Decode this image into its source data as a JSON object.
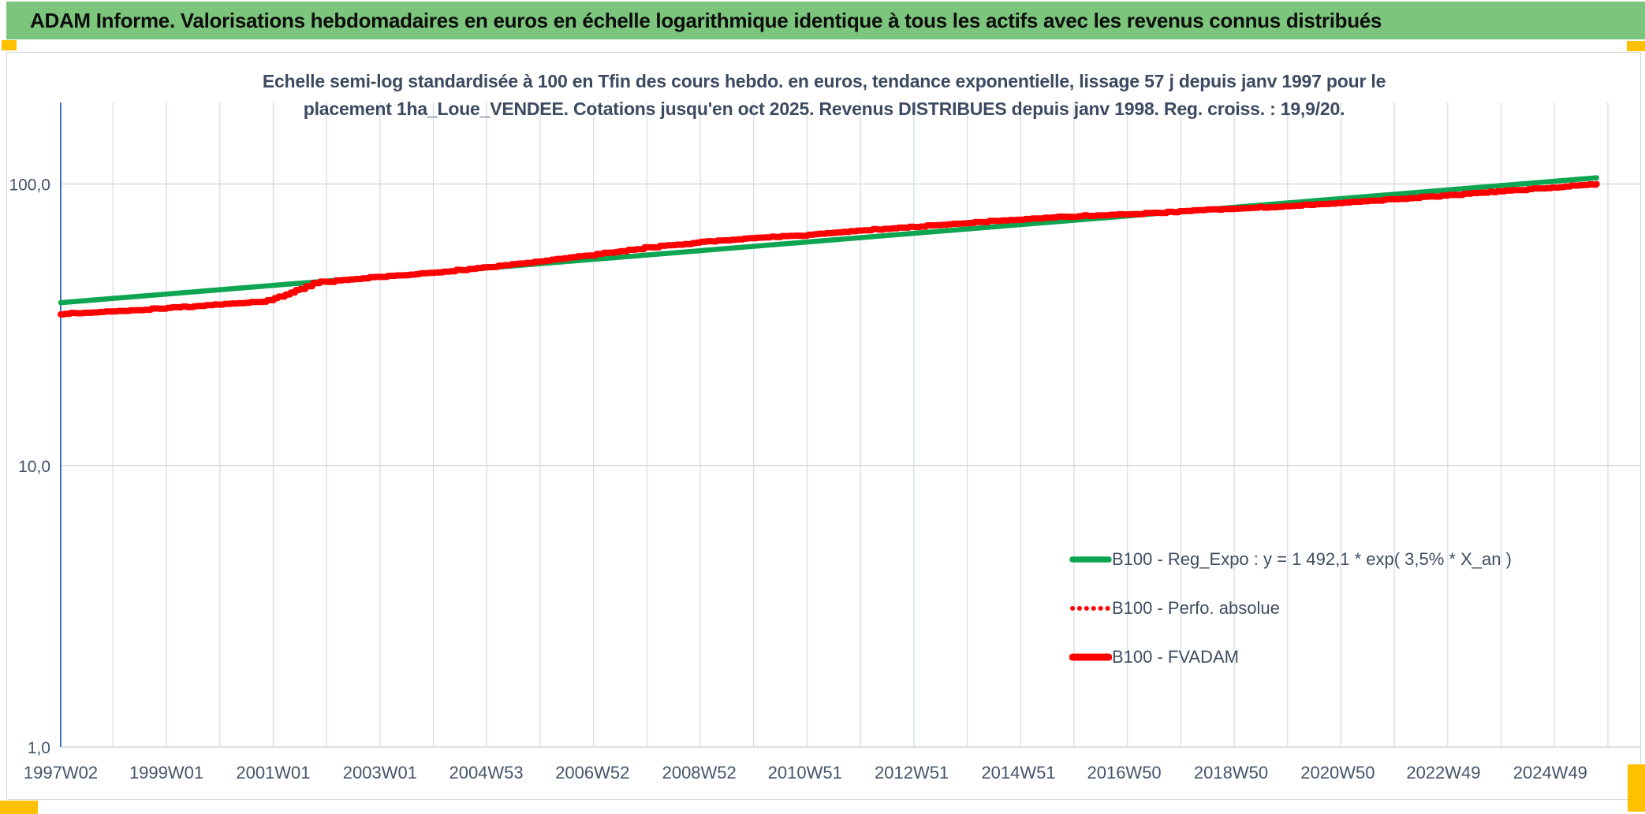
{
  "header": {
    "title": "ADAM Informe. Valorisations hebdomadaires en euros en échelle logarithmique identique à tous les actifs avec les revenus connus distribués"
  },
  "chart": {
    "subtitle": "Echelle semi-log standardisée à 100 en Tfin des cours hebdo. en euros, tendance exponentielle, lissage 57 j depuis janv 1997 pour le placement 1ha_Loue_VENDEE. Cotations jusqu'en oct 2025. Revenus DISTRIBUES depuis janv 1998. Reg. croiss. : 19,9/20."
  },
  "chart_data": {
    "type": "line",
    "y_scale": "log10",
    "ylim": [
      1,
      200
    ],
    "x_range": [
      1997.02,
      2025.79
    ],
    "grid": {
      "vertical_interval_years": 1,
      "vertical_from": 1998,
      "vertical_to": 2026
    },
    "legend_position": "inside-lower-right",
    "y_ticks": [
      {
        "value": 100,
        "label": "100,0"
      },
      {
        "value": 10,
        "label": "10,0"
      },
      {
        "value": 1,
        "label": "1,0"
      }
    ],
    "x_ticks": [
      {
        "t": 1997.02,
        "label": "1997W02"
      },
      {
        "t": 1999.0,
        "label": "1999W01"
      },
      {
        "t": 2001.0,
        "label": "2001W01"
      },
      {
        "t": 2003.0,
        "label": "2003W01"
      },
      {
        "t": 2004.99,
        "label": "2004W53"
      },
      {
        "t": 2006.98,
        "label": "2006W52"
      },
      {
        "t": 2008.98,
        "label": "2008W52"
      },
      {
        "t": 2010.96,
        "label": "2010W51"
      },
      {
        "t": 2012.96,
        "label": "2012W51"
      },
      {
        "t": 2014.96,
        "label": "2014W51"
      },
      {
        "t": 2016.94,
        "label": "2016W50"
      },
      {
        "t": 2018.94,
        "label": "2018W50"
      },
      {
        "t": 2020.94,
        "label": "2020W50"
      },
      {
        "t": 2022.92,
        "label": "2022W49"
      },
      {
        "t": 2024.92,
        "label": "2024W49"
      }
    ],
    "series": [
      {
        "name": "B100 - Reg_Expo : y = 1 492,1 * exp( 3,5% *  X_an )",
        "color": "#0DA551",
        "style": "solid",
        "width": 6.5,
        "model": {
          "type": "exponential",
          "value_at_end": 105.2,
          "growth_per_year": 0.0355,
          "t_end": 2025.79
        },
        "points": [
          [
            1997.02,
            37.9
          ],
          [
            2025.79,
            105.2
          ]
        ]
      },
      {
        "name": "B100 - Perfo. absolue",
        "color": "#FF0000",
        "style": "dotted",
        "width": 5,
        "note": "coincides with B100 - FVADAM (hidden beneath it)"
      },
      {
        "name": "B100 - FVADAM",
        "color": "#FF0000",
        "style": "solid",
        "width": 8,
        "start_value": 34.5,
        "end_value": 100.0,
        "ratio_to_trend_anchors": [
          [
            1997.02,
            0.912
          ],
          [
            1997.7,
            0.904
          ],
          [
            1998.5,
            0.896
          ],
          [
            1999.3,
            0.89
          ],
          [
            2000.2,
            0.885
          ],
          [
            2000.8,
            0.882
          ],
          [
            2001.2,
            0.915
          ],
          [
            2001.8,
            0.995
          ],
          [
            2002.5,
            1.0
          ],
          [
            2003.5,
            0.998
          ],
          [
            2004.5,
            1.002
          ],
          [
            2005.2,
            1.008
          ],
          [
            2006.0,
            1.02
          ],
          [
            2007.0,
            1.04
          ],
          [
            2008.0,
            1.064
          ],
          [
            2009.0,
            1.071
          ],
          [
            2010.1,
            1.072
          ],
          [
            2010.8,
            1.058
          ],
          [
            2011.6,
            1.063
          ],
          [
            2012.5,
            1.058
          ],
          [
            2013.5,
            1.053
          ],
          [
            2014.5,
            1.048
          ],
          [
            2015.5,
            1.04
          ],
          [
            2016.3,
            1.029
          ],
          [
            2017.0,
            1.014
          ],
          [
            2017.6,
            1.006
          ],
          [
            2018.2,
            1.0
          ],
          [
            2018.9,
            0.991
          ],
          [
            2019.7,
            0.978
          ],
          [
            2020.5,
            0.97
          ],
          [
            2021.4,
            0.965
          ],
          [
            2022.4,
            0.96
          ],
          [
            2023.4,
            0.956
          ],
          [
            2024.4,
            0.953
          ],
          [
            2025.2,
            0.951
          ],
          [
            2025.79,
            0.95
          ]
        ]
      }
    ],
    "colors": {
      "grid_vertical": "#D9DEE8",
      "grid_horizontal": "#D9D9DC",
      "axis_line": "#D5DAE2",
      "y_axis": "#4472C4",
      "tick_text": "#44546A",
      "header_green": "#7CC57C",
      "accent_yellow": "#FFC000",
      "trend_green": "#0DA551",
      "series_red": "#FF0000"
    }
  }
}
